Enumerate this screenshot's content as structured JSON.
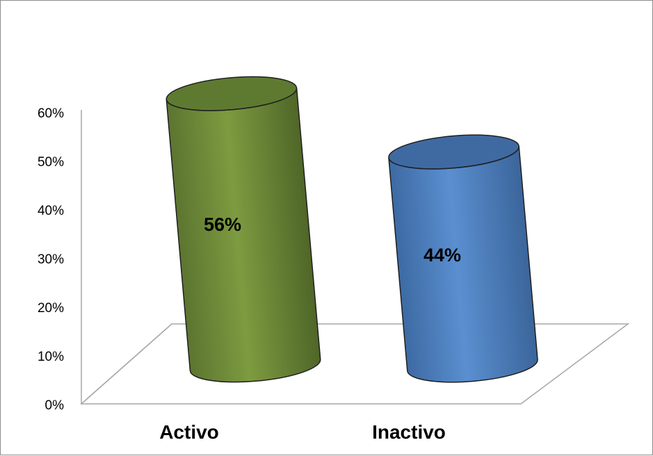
{
  "chart_data": {
    "type": "bar",
    "style": "3d-cylinder",
    "categories": [
      "Activo",
      "Inactivo"
    ],
    "values": [
      56,
      44
    ],
    "data_labels": [
      "56%",
      "44%"
    ],
    "y_ticks": [
      "0%",
      "10%",
      "20%",
      "30%",
      "40%",
      "50%",
      "60%"
    ],
    "ylim": [
      0,
      60
    ],
    "grid": false,
    "legend": "none",
    "colors": [
      "#77933c",
      "#4f81bd"
    ]
  }
}
